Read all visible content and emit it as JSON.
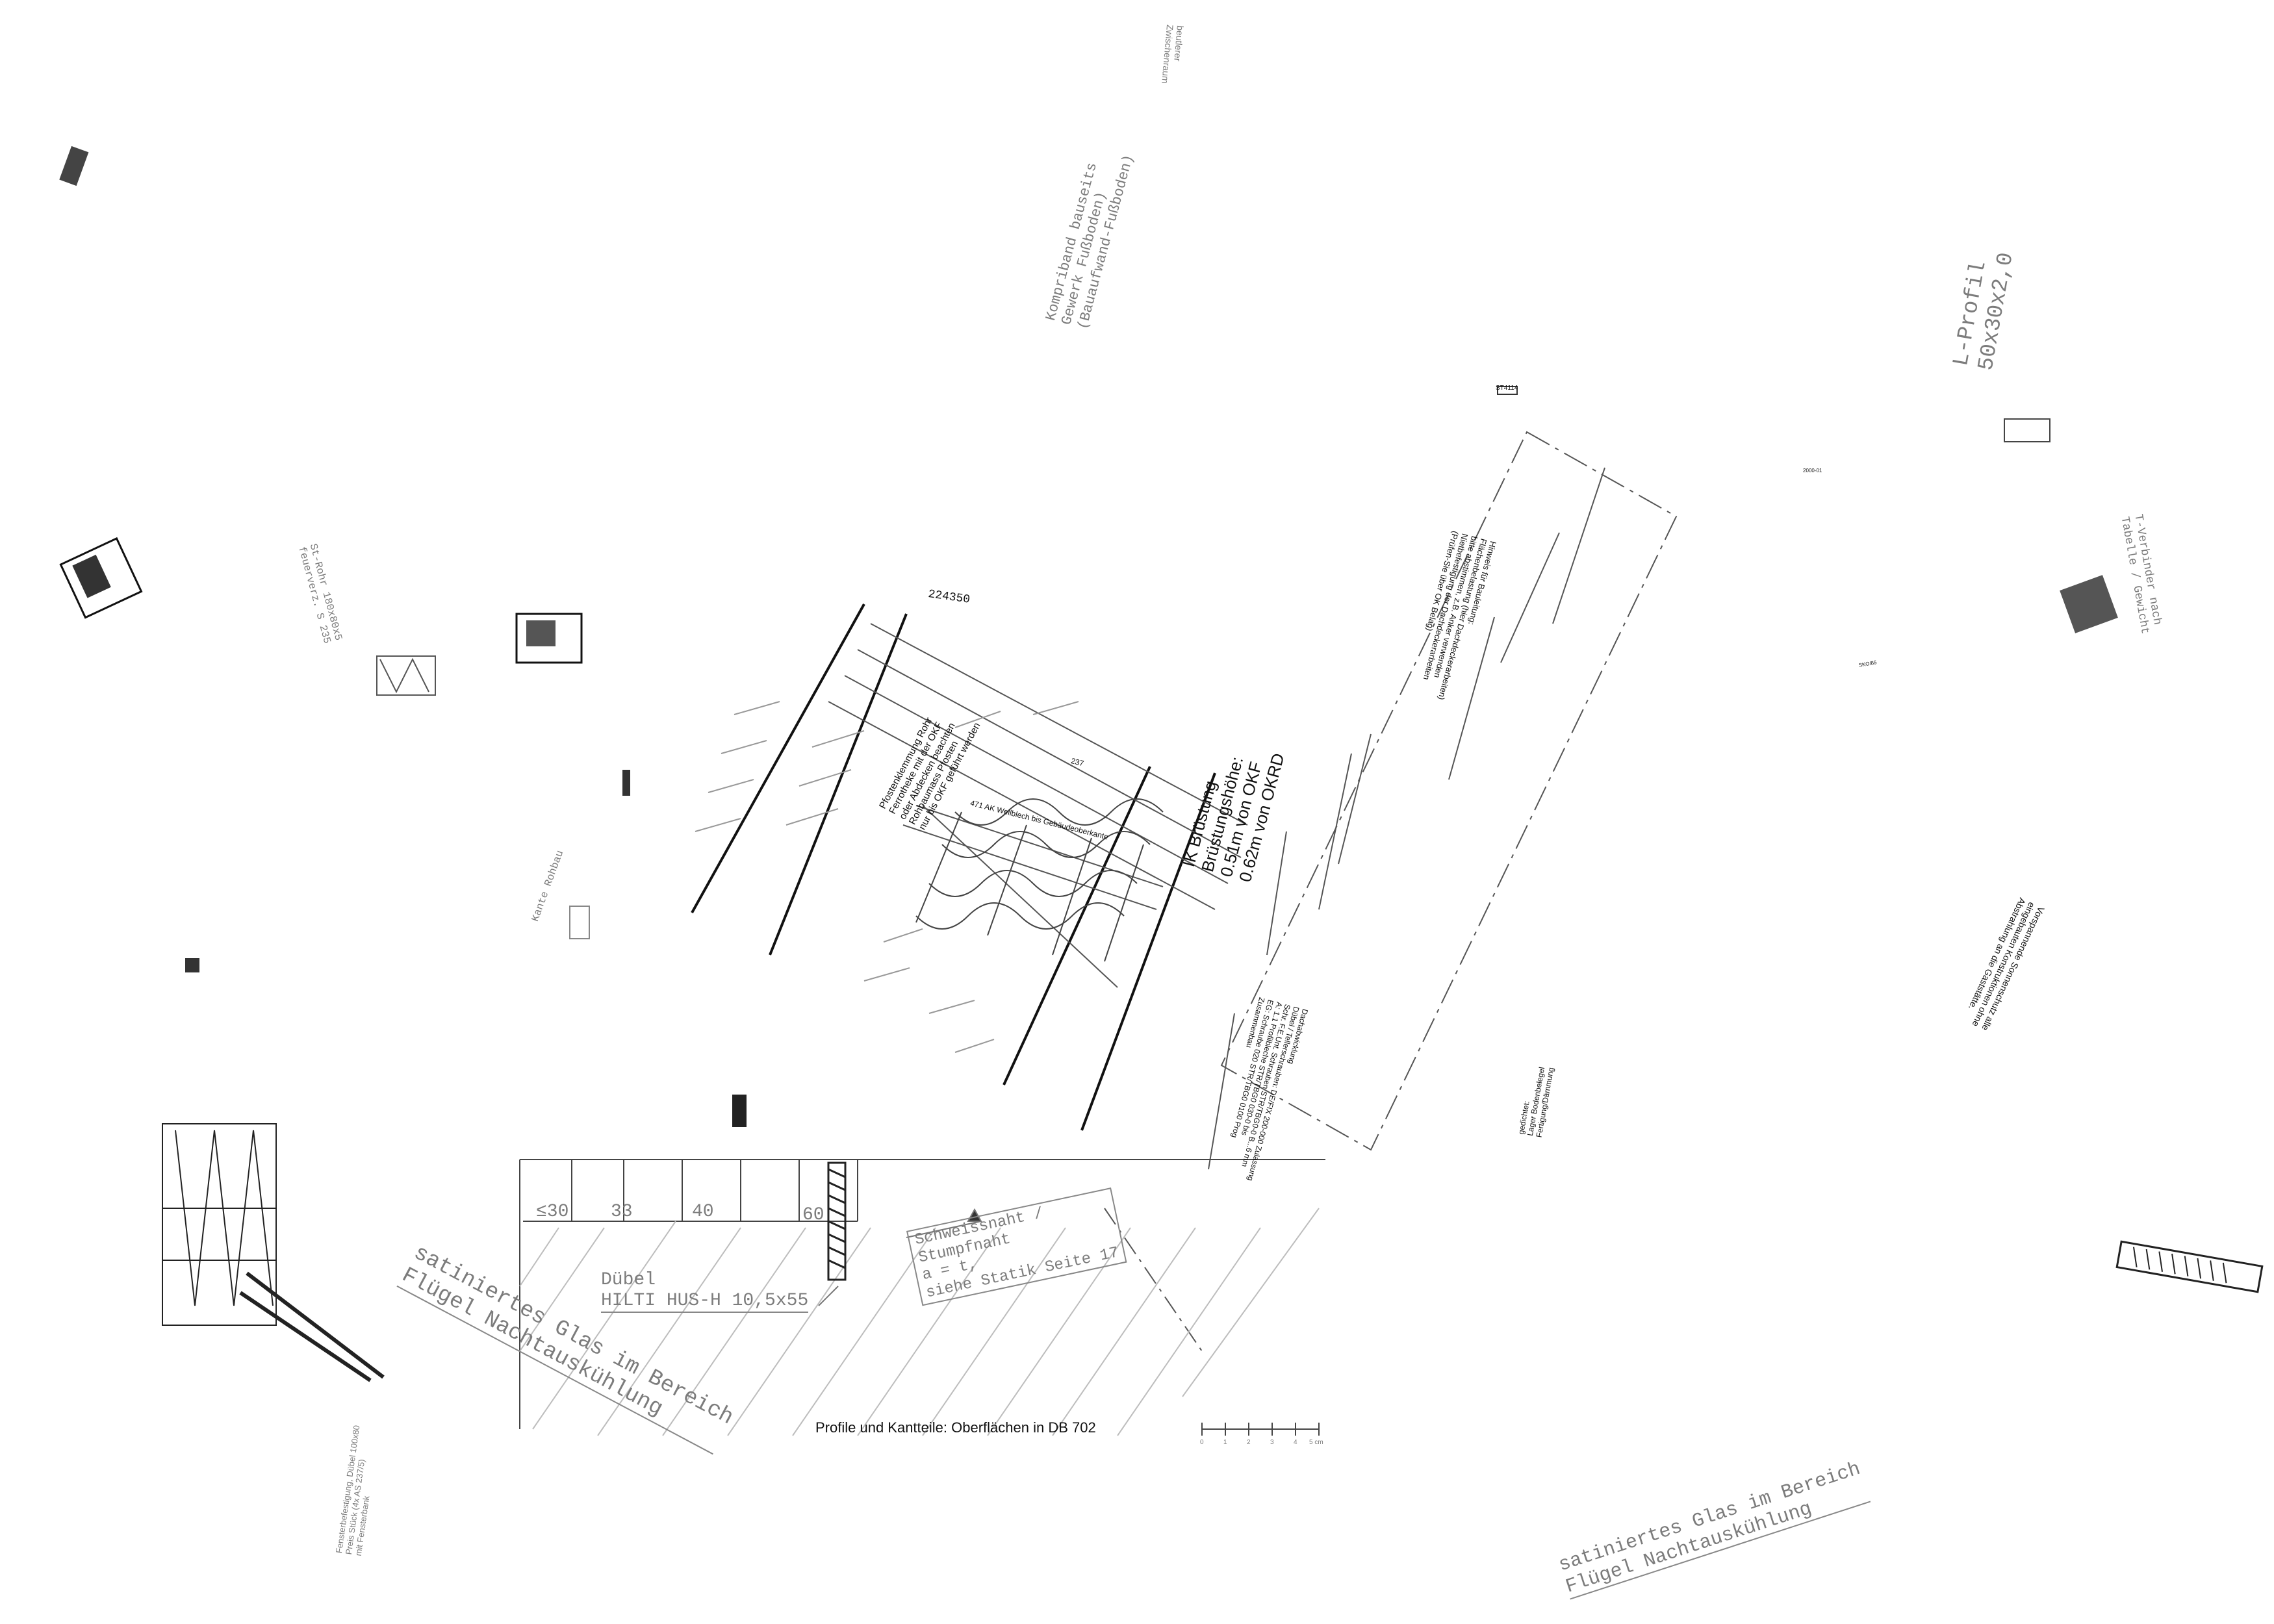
{
  "canvas": {
    "background": "#ffffff",
    "line_color": "#222222",
    "faint_color": "#9a9a9a"
  },
  "labels": {
    "beutlerer": [
      "beutlerer",
      "Zwischenraum"
    ],
    "kompriband": [
      "Kompriband bauseits",
      "Gewerk Fußboden)",
      "(Bauaufwand-Fußboden)"
    ],
    "l_profil": [
      "L-Profil",
      "50x30x2,0"
    ],
    "t_verbinder": [
      "T-Verbinder nach",
      "Tabelle / Gewicht"
    ],
    "st_rohr": [
      "St-Rohr 180x80x5",
      "feuerverz. S 235"
    ],
    "kante_rohbau": "Kante Rohbau",
    "dim_224": "224350",
    "pfosten_note": [
      "Pfostenklemmung Rohr",
      "Ferrotheke mit der OKF",
      "oder Abdecken beachten",
      "Rohbaumass Pfosten",
      "nur bis OKF geführt werden"
    ],
    "fw_line1": "471 AK Wellblech bis Gebäudeoberkante",
    "fw_line2": "237",
    "brustung_title": "IK Brüstung",
    "brustung_height": "Brüstungshöhe:",
    "brustung_okf": "0.51m von OKF",
    "brustung_okrd": "0.62m von OKRD",
    "hinweis": [
      "Hinweis für Bauleitung:",
      "Flächenbelastung (hier Dachdeckerarbeiten)",
      "bitte abstimmen, z.B. Anker verwenden",
      "Nietbefestigung der Dachdeckerarbeiten",
      "(Prüfen-Sie über OK Belag)"
    ],
    "dachab": [
      "Dachabwicklung",
      "Dübel / Tellerschrauben: DE/FIX 200-000 Zulassung",
      "Schr. F.E.Unt. Schrauben STR/TBG0-0 B...6 mm",
      "A: 1.1 Profilbleche STR/TBG0 030-0 bis",
      "EG: Schraube 020 STR/TBG0 0100 Prog",
      "Zusammenbau"
    ],
    "vorspannung": [
      "Vorspannende Sonnenschutz alle",
      "eingebauten Konstruktionen ohne",
      "Abstrahlung an die Gaststätte."
    ],
    "gedicht": [
      "gedichtet:",
      "Lager Bodenbelegel",
      "Fertigung/Dämmung"
    ],
    "dims": [
      "≤30",
      "33",
      "40",
      "60"
    ],
    "duebel_title": "Dübel",
    "duebel_name": "HILTI HUS-H 10,5x55",
    "schweiss": [
      "Schweissnaht /",
      "Stumpfnaht",
      "a = t,",
      "siehe Statik Seite 17"
    ],
    "profile_note": "Profile und Kantteile: Oberflächen in DB 702",
    "satiniert_1": [
      "satiniertes Glas im Bereich",
      "Flügel Nachtauskühlung"
    ],
    "satiniert_2": [
      "satiniertes Glas im Bereich",
      "Flügel Nachtauskühlung"
    ],
    "fensterlaibung": [
      "Fensterbefestigung, Dübel 100x80",
      "Preis Stück (4x AS 237/5)",
      "mit Fensterbank"
    ],
    "scale_ticks": [
      "0",
      "1",
      "2",
      "3",
      "4",
      "5 cm"
    ],
    "small_tag_a": "ST4114",
    "small_tag_b": "2000-01",
    "small_tag_c": "SKO/85"
  }
}
